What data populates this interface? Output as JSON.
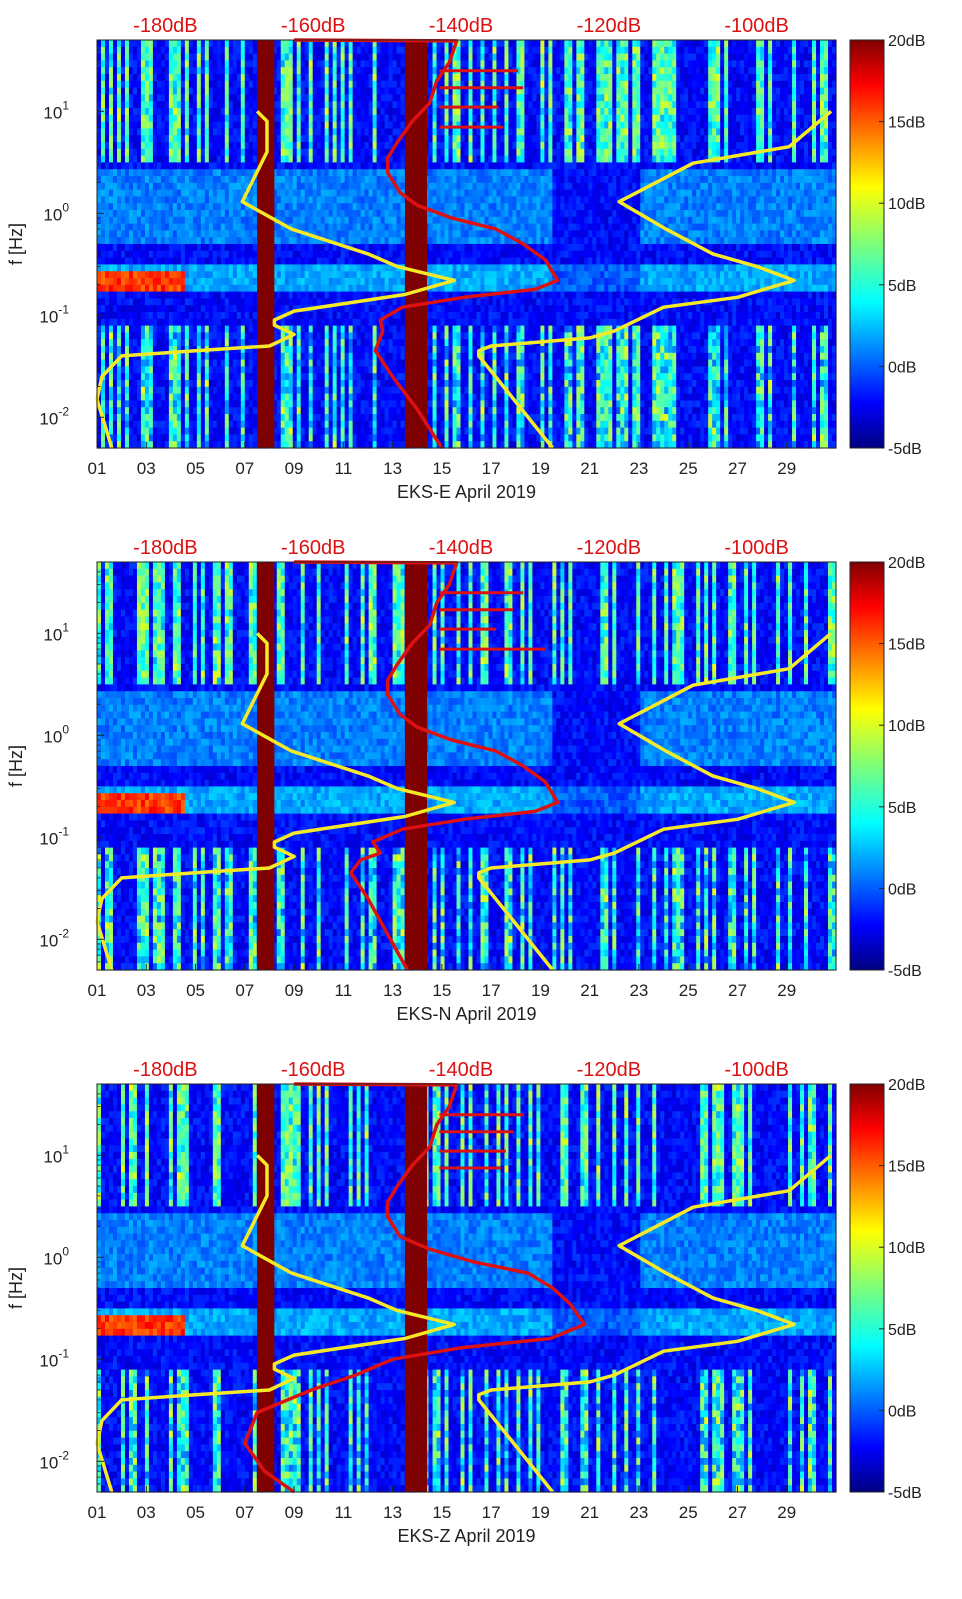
{
  "chart_data": [
    {
      "type": "heatmap",
      "xlabel": "EKS-E April 2019",
      "ylabel": "f [Hz]",
      "x_ticks": [
        "01",
        "03",
        "05",
        "07",
        "09",
        "11",
        "13",
        "15",
        "17",
        "19",
        "21",
        "23",
        "25",
        "27",
        "29"
      ],
      "x_range": [
        1,
        31
      ],
      "yscale": "log",
      "y_range": [
        0.005,
        50
      ],
      "y_ticks": [
        {
          "base": "10",
          "exp": "-2"
        },
        {
          "base": "10",
          "exp": "-1"
        },
        {
          "base": "10",
          "exp": "0"
        },
        {
          "base": "10",
          "exp": "1"
        }
      ],
      "top_axis_labels": [
        "-180dB",
        "-160dB",
        "-140dB",
        "-120dB",
        "-100dB"
      ],
      "colorbar_labels": [
        "20dB",
        "15dB",
        "10dB",
        "5dB",
        "0dB",
        "-5dB"
      ],
      "colorbar_range": [
        -5,
        20
      ],
      "noise_model_lines": {
        "color": "#f5e928",
        "low_model": [
          [
            7.5,
            10
          ],
          [
            7.9,
            8
          ],
          [
            7.9,
            4
          ],
          [
            6.9,
            1.3
          ],
          [
            8.9,
            0.7
          ],
          [
            12,
            0.4
          ],
          [
            13.2,
            0.3
          ],
          [
            15.5,
            0.22
          ],
          [
            13.5,
            0.16
          ],
          [
            9,
            0.11
          ],
          [
            8.2,
            0.09
          ],
          [
            8.2,
            0.08
          ],
          [
            9,
            0.065
          ],
          [
            8,
            0.05
          ],
          [
            5,
            0.045
          ],
          [
            2,
            0.04
          ],
          [
            1.2,
            0.025
          ],
          [
            1,
            0.015
          ],
          [
            1.6,
            0.005
          ]
        ],
        "high_model": [
          [
            30.8,
            10
          ],
          [
            29.1,
            4.5
          ],
          [
            25.2,
            3.1
          ],
          [
            22.2,
            1.3
          ],
          [
            24.1,
            0.7
          ],
          [
            26,
            0.4
          ],
          [
            27.8,
            0.3
          ],
          [
            29.3,
            0.22
          ],
          [
            27,
            0.15
          ],
          [
            24,
            0.12
          ],
          [
            22,
            0.07
          ],
          [
            21,
            0.06
          ],
          [
            17,
            0.05
          ],
          [
            16.5,
            0.045
          ],
          [
            16.5,
            0.04
          ],
          [
            17.5,
            0.02
          ],
          [
            19.5,
            0.005
          ]
        ]
      },
      "median_psd_line": {
        "color": "#dd1111",
        "points": [
          [
            9,
            50
          ],
          [
            15.6,
            49
          ],
          [
            15.3,
            30
          ],
          [
            14.8,
            20
          ],
          [
            14.5,
            12
          ],
          [
            13.8,
            8
          ],
          [
            13.2,
            5
          ],
          [
            12.8,
            3.5
          ],
          [
            12.8,
            2.5
          ],
          [
            13.3,
            1.6
          ],
          [
            14,
            1.2
          ],
          [
            15.4,
            0.9
          ],
          [
            17.2,
            0.7
          ],
          [
            18.3,
            0.5
          ],
          [
            19.2,
            0.35
          ],
          [
            19.7,
            0.22
          ],
          [
            18.8,
            0.18
          ],
          [
            15.9,
            0.15
          ],
          [
            13.4,
            0.12
          ],
          [
            12.5,
            0.09
          ],
          [
            12.6,
            0.07
          ],
          [
            12.3,
            0.045
          ],
          [
            13,
            0.025
          ],
          [
            14,
            0.012
          ],
          [
            15,
            0.005
          ]
        ],
        "spikes": [
          {
            "x": 18.1,
            "y": 25
          },
          {
            "x": 18.3,
            "y": 17
          },
          {
            "x": 17.3,
            "y": 11
          },
          {
            "x": 17.5,
            "y": 7
          }
        ]
      },
      "data_gaps": [
        [
          7.5,
          8.2
        ],
        [
          13.5,
          14.4
        ]
      ],
      "hotspot": {
        "x_range": [
          1,
          4.5
        ],
        "f_range": [
          0.17,
          0.27
        ],
        "level_db": 17
      }
    },
    {
      "type": "heatmap",
      "xlabel": "EKS-N April 2019",
      "ylabel": "f [Hz]",
      "x_ticks": [
        "01",
        "03",
        "05",
        "07",
        "09",
        "11",
        "13",
        "15",
        "17",
        "19",
        "21",
        "23",
        "25",
        "27",
        "29"
      ],
      "x_range": [
        1,
        31
      ],
      "yscale": "log",
      "y_range": [
        0.005,
        50
      ],
      "y_ticks": [
        {
          "base": "10",
          "exp": "-2"
        },
        {
          "base": "10",
          "exp": "-1"
        },
        {
          "base": "10",
          "exp": "0"
        },
        {
          "base": "10",
          "exp": "1"
        }
      ],
      "top_axis_labels": [
        "-180dB",
        "-160dB",
        "-140dB",
        "-120dB",
        "-100dB"
      ],
      "colorbar_labels": [
        "20dB",
        "15dB",
        "10dB",
        "5dB",
        "0dB",
        "-5dB"
      ],
      "colorbar_range": [
        -5,
        20
      ],
      "noise_model_lines": {
        "color": "#f5e928",
        "low_model": [
          [
            7.5,
            10
          ],
          [
            7.9,
            8
          ],
          [
            7.9,
            4
          ],
          [
            6.9,
            1.3
          ],
          [
            8.9,
            0.7
          ],
          [
            12,
            0.4
          ],
          [
            13.2,
            0.3
          ],
          [
            15.5,
            0.22
          ],
          [
            13.5,
            0.16
          ],
          [
            9,
            0.11
          ],
          [
            8.2,
            0.09
          ],
          [
            8.2,
            0.08
          ],
          [
            9,
            0.065
          ],
          [
            8,
            0.05
          ],
          [
            5,
            0.045
          ],
          [
            2,
            0.04
          ],
          [
            1.2,
            0.025
          ],
          [
            1,
            0.015
          ],
          [
            1.6,
            0.005
          ]
        ],
        "high_model": [
          [
            30.8,
            10
          ],
          [
            29.1,
            4.5
          ],
          [
            25.2,
            3.1
          ],
          [
            22.2,
            1.3
          ],
          [
            24.1,
            0.7
          ],
          [
            26,
            0.4
          ],
          [
            27.8,
            0.3
          ],
          [
            29.3,
            0.22
          ],
          [
            27,
            0.15
          ],
          [
            24,
            0.12
          ],
          [
            22,
            0.07
          ],
          [
            21,
            0.06
          ],
          [
            17,
            0.05
          ],
          [
            16.5,
            0.045
          ],
          [
            16.5,
            0.04
          ],
          [
            17.5,
            0.02
          ],
          [
            19.5,
            0.005
          ]
        ]
      },
      "median_psd_line": {
        "color": "#dd1111",
        "points": [
          [
            9,
            50
          ],
          [
            15.6,
            49
          ],
          [
            15.3,
            30
          ],
          [
            14.8,
            20
          ],
          [
            14.5,
            12
          ],
          [
            13.8,
            8
          ],
          [
            13.2,
            5
          ],
          [
            12.8,
            3.5
          ],
          [
            12.8,
            2.5
          ],
          [
            13.3,
            1.6
          ],
          [
            14,
            1.2
          ],
          [
            15.4,
            0.9
          ],
          [
            17.2,
            0.7
          ],
          [
            18.3,
            0.5
          ],
          [
            19.2,
            0.35
          ],
          [
            19.7,
            0.22
          ],
          [
            18.8,
            0.18
          ],
          [
            15.9,
            0.15
          ],
          [
            13.4,
            0.12
          ],
          [
            12.2,
            0.09
          ],
          [
            12.5,
            0.07
          ],
          [
            11.7,
            0.06
          ],
          [
            11.3,
            0.045
          ],
          [
            12,
            0.025
          ],
          [
            13.6,
            0.005
          ]
        ],
        "spikes": [
          {
            "x": 18.3,
            "y": 25
          },
          {
            "x": 17.9,
            "y": 17
          },
          {
            "x": 17.2,
            "y": 11
          },
          {
            "x": 19.2,
            "y": 7
          }
        ]
      },
      "data_gaps": [
        [
          7.5,
          8.2
        ],
        [
          13.5,
          14.4
        ]
      ],
      "hotspot": {
        "x_range": [
          1,
          4.5
        ],
        "f_range": [
          0.17,
          0.27
        ],
        "level_db": 17
      }
    },
    {
      "type": "heatmap",
      "xlabel": "EKS-Z April 2019",
      "ylabel": "f [Hz]",
      "x_ticks": [
        "01",
        "03",
        "05",
        "07",
        "09",
        "11",
        "13",
        "15",
        "17",
        "19",
        "21",
        "23",
        "25",
        "27",
        "29"
      ],
      "x_range": [
        1,
        31
      ],
      "yscale": "log",
      "y_range": [
        0.005,
        50
      ],
      "y_ticks": [
        {
          "base": "10",
          "exp": "-2"
        },
        {
          "base": "10",
          "exp": "-1"
        },
        {
          "base": "10",
          "exp": "0"
        },
        {
          "base": "10",
          "exp": "1"
        }
      ],
      "top_axis_labels": [
        "-180dB",
        "-160dB",
        "-140dB",
        "-120dB",
        "-100dB"
      ],
      "colorbar_labels": [
        "20dB",
        "15dB",
        "10dB",
        "5dB",
        "0dB",
        "-5dB"
      ],
      "colorbar_range": [
        -5,
        20
      ],
      "noise_model_lines": {
        "color": "#f5e928",
        "low_model": [
          [
            7.5,
            10
          ],
          [
            7.9,
            8
          ],
          [
            7.9,
            4
          ],
          [
            6.9,
            1.3
          ],
          [
            8.9,
            0.7
          ],
          [
            12,
            0.4
          ],
          [
            13.2,
            0.3
          ],
          [
            15.5,
            0.22
          ],
          [
            13.5,
            0.16
          ],
          [
            9,
            0.11
          ],
          [
            8.2,
            0.09
          ],
          [
            8.2,
            0.08
          ],
          [
            9,
            0.065
          ],
          [
            8,
            0.05
          ],
          [
            5,
            0.045
          ],
          [
            2,
            0.04
          ],
          [
            1.2,
            0.025
          ],
          [
            1,
            0.015
          ],
          [
            1.6,
            0.005
          ]
        ],
        "high_model": [
          [
            30.8,
            10
          ],
          [
            29.1,
            4.5
          ],
          [
            25.2,
            3.1
          ],
          [
            22.2,
            1.3
          ],
          [
            24.1,
            0.7
          ],
          [
            26,
            0.4
          ],
          [
            27.8,
            0.3
          ],
          [
            29.3,
            0.22
          ],
          [
            27,
            0.15
          ],
          [
            24,
            0.12
          ],
          [
            22,
            0.07
          ],
          [
            21,
            0.06
          ],
          [
            17,
            0.05
          ],
          [
            16.5,
            0.045
          ],
          [
            16.5,
            0.04
          ],
          [
            17.5,
            0.02
          ],
          [
            19.5,
            0.005
          ]
        ]
      },
      "median_psd_line": {
        "color": "#dd1111",
        "points": [
          [
            9,
            50
          ],
          [
            15.6,
            49
          ],
          [
            15.3,
            30
          ],
          [
            14.8,
            20
          ],
          [
            14.5,
            12
          ],
          [
            13.8,
            8
          ],
          [
            13.2,
            5
          ],
          [
            12.8,
            3.5
          ],
          [
            12.8,
            2.5
          ],
          [
            13.3,
            1.6
          ],
          [
            14.5,
            1.2
          ],
          [
            16.3,
            0.9
          ],
          [
            18.5,
            0.7
          ],
          [
            19.5,
            0.5
          ],
          [
            20.2,
            0.35
          ],
          [
            20.8,
            0.22
          ],
          [
            19.4,
            0.16
          ],
          [
            15.8,
            0.13
          ],
          [
            13,
            0.1
          ],
          [
            11.5,
            0.07
          ],
          [
            9.7,
            0.05
          ],
          [
            7.5,
            0.03
          ],
          [
            7,
            0.015
          ],
          [
            7.8,
            0.008
          ],
          [
            9,
            0.005
          ]
        ],
        "spikes": [
          {
            "x": 18.3,
            "y": 25
          },
          {
            "x": 17.9,
            "y": 17
          },
          {
            "x": 17.6,
            "y": 11
          },
          {
            "x": 17.4,
            "y": 7.5
          }
        ]
      },
      "data_gaps": [
        [
          7.5,
          8.2
        ],
        [
          13.5,
          14.4
        ]
      ],
      "hotspot": {
        "x_range": [
          1,
          4.5
        ],
        "f_range": [
          0.17,
          0.27
        ],
        "level_db": 17
      }
    }
  ]
}
